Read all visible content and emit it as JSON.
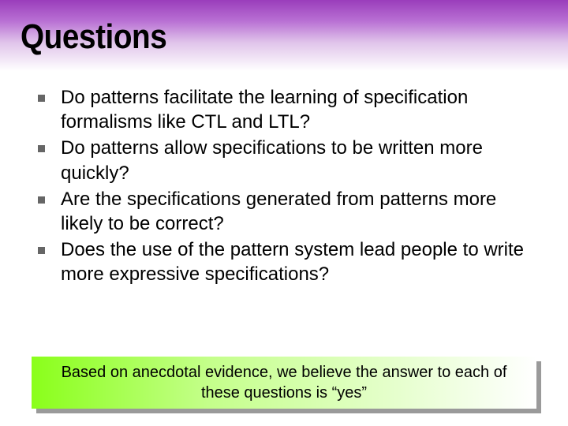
{
  "slide": {
    "title": "Questions",
    "header_gradient": {
      "top": "#9a3dbb",
      "mid1": "#b971d4",
      "mid2": "#e0c4ea",
      "bottom": "#ffffff"
    },
    "title_fontsize": 44,
    "title_color": "#000000"
  },
  "bullets": {
    "marker_size": 9,
    "marker_color": "#666666",
    "text_fontsize": 24,
    "text_color": "#000000",
    "items": [
      {
        "text": "Do patterns facilitate the learning of specification formalisms like CTL and LTL?"
      },
      {
        "text": "Do patterns allow specifications to be written more quickly?"
      },
      {
        "text": "Are the specifications generated from patterns more likely to be correct?"
      },
      {
        "text": "Does the use of the pattern system lead people to write more expressive specifications?"
      }
    ]
  },
  "footer": {
    "text": "Based on anecdotal evidence, we believe the answer to each of these questions is “yes”",
    "gradient": {
      "left": "#8aff1a",
      "mid": "#c4ff8a",
      "right": "#ffffff"
    },
    "shadow_color": "#9a9a9a",
    "text_fontsize": 20,
    "text_color": "#000000"
  }
}
